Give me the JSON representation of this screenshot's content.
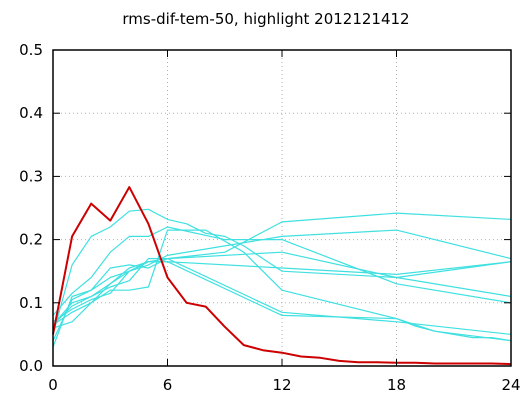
{
  "chart_data": {
    "type": "line",
    "title": "rms-dif-tem-50, highlight 2012121412",
    "xlabel": "",
    "ylabel": "",
    "xlim": [
      0,
      24
    ],
    "ylim": [
      0,
      0.5
    ],
    "x_ticks": [
      0,
      6,
      12,
      18,
      24
    ],
    "y_ticks": [
      0.0,
      0.1,
      0.2,
      0.3,
      0.4,
      0.5
    ],
    "y_tick_labels": [
      "0.0",
      "0.1",
      "0.2",
      "0.3",
      "0.4",
      "0.5"
    ],
    "x_tick_labels": [
      "0",
      "6",
      "12",
      "18",
      "24"
    ],
    "grid": true,
    "colors": {
      "highlight": "#cc0000",
      "background_series": "#40e0e0"
    },
    "highlight_series": {
      "x": [
        0,
        1,
        2,
        3,
        4,
        5,
        6,
        7,
        8,
        9,
        10,
        11,
        12,
        13,
        14,
        15,
        16,
        17,
        18,
        19,
        20,
        21,
        22,
        23,
        24
      ],
      "values": [
        0.05,
        0.205,
        0.257,
        0.23,
        0.283,
        0.225,
        0.14,
        0.1,
        0.094,
        0.062,
        0.033,
        0.025,
        0.021,
        0.015,
        0.013,
        0.008,
        0.006,
        0.006,
        0.005,
        0.005,
        0.004,
        0.004,
        0.004,
        0.004,
        0.003
      ]
    },
    "series": [
      {
        "x": [
          0,
          1,
          2,
          3,
          4,
          5,
          6,
          7,
          8,
          9,
          10,
          11,
          12,
          18,
          24
        ],
        "values": [
          0.05,
          0.16,
          0.205,
          0.22,
          0.245,
          0.248,
          0.232,
          0.225,
          0.21,
          0.205,
          0.19,
          0.17,
          0.15,
          0.14,
          0.165
        ]
      },
      {
        "x": [
          0,
          1,
          2,
          3,
          4,
          5,
          6,
          9,
          12,
          18,
          24
        ],
        "values": [
          0.04,
          0.105,
          0.12,
          0.155,
          0.16,
          0.155,
          0.17,
          0.18,
          0.228,
          0.242,
          0.232
        ]
      },
      {
        "x": [
          0,
          1,
          2,
          3,
          4,
          5,
          6,
          9,
          12,
          18,
          24
        ],
        "values": [
          0.08,
          0.115,
          0.14,
          0.18,
          0.205,
          0.205,
          0.22,
          0.2,
          0.2,
          0.13,
          0.1
        ]
      },
      {
        "x": [
          0,
          1,
          2,
          3,
          4,
          5,
          6,
          8,
          10,
          12,
          18,
          20,
          24
        ],
        "values": [
          0.06,
          0.07,
          0.1,
          0.12,
          0.12,
          0.125,
          0.215,
          0.215,
          0.18,
          0.12,
          0.075,
          0.055,
          0.04
        ]
      },
      {
        "x": [
          0,
          1,
          2,
          3,
          4,
          5,
          6,
          12,
          18,
          24
        ],
        "values": [
          0.03,
          0.11,
          0.12,
          0.14,
          0.15,
          0.165,
          0.165,
          0.155,
          0.145,
          0.165
        ]
      },
      {
        "x": [
          0,
          1,
          2,
          3,
          4,
          5,
          6,
          12,
          18,
          19,
          20,
          21,
          22,
          23,
          24
        ],
        "values": [
          0.065,
          0.1,
          0.11,
          0.13,
          0.155,
          0.165,
          0.165,
          0.08,
          0.075,
          0.063,
          0.055,
          0.05,
          0.045,
          0.045,
          0.04
        ]
      },
      {
        "x": [
          0,
          1,
          2,
          3,
          4,
          5,
          6,
          12,
          18,
          24
        ],
        "values": [
          0.07,
          0.09,
          0.105,
          0.115,
          0.15,
          0.165,
          0.17,
          0.085,
          0.07,
          0.05
        ]
      },
      {
        "x": [
          0,
          1,
          2,
          3,
          4,
          5,
          6,
          12,
          18,
          24
        ],
        "values": [
          0.065,
          0.085,
          0.1,
          0.13,
          0.15,
          0.16,
          0.175,
          0.205,
          0.215,
          0.17
        ]
      },
      {
        "x": [
          0,
          1,
          2,
          3,
          4,
          5,
          6,
          12,
          18,
          24
        ],
        "values": [
          0.065,
          0.095,
          0.11,
          0.125,
          0.135,
          0.17,
          0.17,
          0.18,
          0.14,
          0.11
        ]
      }
    ]
  }
}
